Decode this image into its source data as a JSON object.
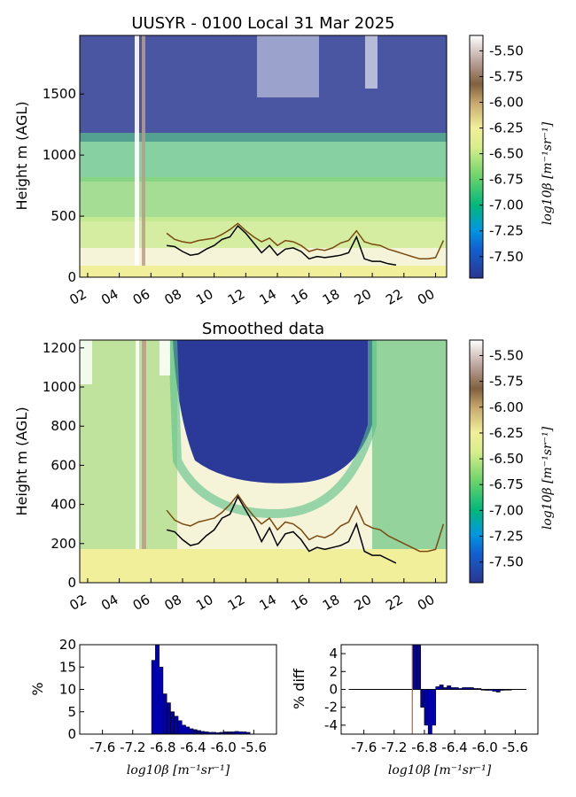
{
  "chart_data": [
    {
      "type": "heatmap",
      "title": "UUSYR - 0100 Local 31 Mar 2025",
      "ylabel": "Height m (AGL)",
      "ylim": [
        0,
        1980
      ],
      "yticks": [
        "0",
        "500",
        "1000",
        "1500"
      ],
      "xticks": [
        "02",
        "04",
        "06",
        "08",
        "10",
        "12",
        "14",
        "16",
        "18",
        "20",
        "22",
        "00"
      ],
      "colorbar": {
        "label": "log10β [m⁻¹sr⁻¹]",
        "range": [
          -7.7,
          -5.35
        ],
        "ticks": [
          "-5.50",
          "-5.75",
          "-6.00",
          "-6.25",
          "-6.50",
          "-6.75",
          "-7.00",
          "-7.25",
          "-7.50"
        ]
      },
      "series": [
        {
          "color": "#000000",
          "x": [
            7.0,
            7.5,
            8.0,
            8.5,
            9.0,
            9.5,
            10.0,
            10.5,
            11.0,
            11.5,
            12.0,
            12.5,
            13.0,
            13.5,
            14.0,
            14.5,
            15.0,
            15.5,
            16.0,
            16.5,
            17.0,
            17.5,
            18.0,
            18.5,
            19.0,
            19.5,
            20.0,
            20.5,
            21.0,
            21.5
          ],
          "y": [
            260,
            250,
            210,
            180,
            190,
            230,
            260,
            310,
            330,
            420,
            360,
            280,
            200,
            260,
            180,
            230,
            240,
            210,
            150,
            170,
            160,
            170,
            180,
            200,
            330,
            150,
            130,
            130,
            110,
            100
          ]
        },
        {
          "color": "#7a4a10",
          "x": [
            7.0,
            7.5,
            8.0,
            8.5,
            9.0,
            9.5,
            10.0,
            10.5,
            11.0,
            11.5,
            12.0,
            12.5,
            13.0,
            13.5,
            14.0,
            14.5,
            15.0,
            15.5,
            16.0,
            16.5,
            17.0,
            17.5,
            18.0,
            18.5,
            19.0,
            19.5,
            20.0,
            20.5,
            21.0,
            21.5,
            22.0,
            22.5,
            23.0,
            23.5,
            24.0,
            24.5
          ],
          "y": [
            360,
            310,
            290,
            280,
            300,
            310,
            320,
            350,
            390,
            440,
            380,
            330,
            290,
            320,
            260,
            300,
            290,
            260,
            210,
            230,
            220,
            240,
            280,
            300,
            380,
            290,
            270,
            260,
            230,
            210,
            190,
            170,
            150,
            150,
            160,
            300
          ]
        }
      ]
    },
    {
      "type": "heatmap",
      "title": "Smoothed data",
      "ylabel": "Height m (AGL)",
      "ylim": [
        0,
        1240
      ],
      "yticks": [
        "0",
        "200",
        "400",
        "600",
        "800",
        "1000",
        "1200"
      ],
      "xticks": [
        "02",
        "04",
        "06",
        "08",
        "10",
        "12",
        "14",
        "16",
        "18",
        "20",
        "22",
        "00"
      ],
      "colorbar": {
        "label": "log10β [m⁻¹sr⁻¹]",
        "range": [
          -7.7,
          -5.35
        ],
        "ticks": [
          "-5.50",
          "-5.75",
          "-6.00",
          "-6.25",
          "-6.50",
          "-6.75",
          "-7.00",
          "-7.25",
          "-7.50"
        ]
      },
      "series": [
        {
          "color": "#000000",
          "x": [
            7.0,
            7.5,
            8.0,
            8.5,
            9.0,
            9.5,
            10.0,
            10.5,
            11.0,
            11.5,
            12.0,
            12.5,
            13.0,
            13.5,
            14.0,
            14.5,
            15.0,
            15.5,
            16.0,
            16.5,
            17.0,
            17.5,
            18.0,
            18.5,
            19.0,
            19.5,
            20.0,
            20.5,
            21.0,
            21.5
          ],
          "y": [
            270,
            260,
            220,
            190,
            200,
            240,
            270,
            330,
            350,
            440,
            370,
            300,
            210,
            280,
            190,
            250,
            260,
            220,
            160,
            180,
            170,
            180,
            190,
            210,
            300,
            160,
            140,
            140,
            120,
            100
          ]
        },
        {
          "color": "#7a4a10",
          "x": [
            7.0,
            7.5,
            8.0,
            8.5,
            9.0,
            9.5,
            10.0,
            10.5,
            11.0,
            11.5,
            12.0,
            12.5,
            13.0,
            13.5,
            14.0,
            14.5,
            15.0,
            15.5,
            16.0,
            16.5,
            17.0,
            17.5,
            18.0,
            18.5,
            19.0,
            19.5,
            20.0,
            20.5,
            21.0,
            21.5,
            22.0,
            22.5,
            23.0,
            23.5,
            24.0,
            24.5
          ],
          "y": [
            370,
            320,
            300,
            290,
            310,
            320,
            330,
            360,
            400,
            450,
            390,
            340,
            300,
            330,
            270,
            310,
            300,
            270,
            220,
            240,
            230,
            250,
            290,
            310,
            390,
            300,
            280,
            270,
            240,
            220,
            200,
            180,
            160,
            160,
            170,
            300
          ]
        }
      ]
    },
    {
      "type": "bar",
      "ylabel": "%",
      "xlabel": "log10β [m⁻¹sr⁻¹]",
      "ylim": [
        0,
        20
      ],
      "yticks": [
        "0",
        "5",
        "10",
        "15",
        "20"
      ],
      "xticks": [
        "-7.6",
        "-7.2",
        "-6.8",
        "-6.4",
        "-6.0",
        "-5.6"
      ],
      "xlim": [
        -7.9,
        -5.3
      ],
      "x": [
        -6.95,
        -6.9,
        -6.85,
        -6.8,
        -6.75,
        -6.7,
        -6.65,
        -6.6,
        -6.55,
        -6.5,
        -6.45,
        -6.4,
        -6.35,
        -6.3,
        -6.25,
        -6.2,
        -6.15,
        -6.1,
        -6.05,
        -6.0,
        -5.95,
        -5.9,
        -5.85,
        -5.8,
        -5.75,
        -5.7
      ],
      "values": [
        16.5,
        20.5,
        15,
        9,
        7,
        5,
        4,
        3,
        2,
        1.6,
        1.2,
        1.0,
        0.8,
        0.6,
        0.5,
        0.4,
        0.4,
        0.3,
        0.4,
        0.5,
        0.5,
        0.5,
        0.6,
        0.5,
        0.5,
        0.4
      ]
    },
    {
      "type": "bar",
      "ylabel": "% diff",
      "xlabel": "log10β [m⁻¹sr⁻¹]",
      "ylim": [
        -5,
        5
      ],
      "yticks": [
        "-4",
        "-2",
        "0",
        "2",
        "4"
      ],
      "xticks": [
        "-7.6",
        "-7.2",
        "-6.8",
        "-6.4",
        "-6.0",
        "-5.6"
      ],
      "xlim": [
        -7.9,
        -5.3
      ],
      "x": [
        -6.95,
        -6.9,
        -6.85,
        -6.8,
        -6.75,
        -6.7,
        -6.65,
        -6.6,
        -6.55,
        -6.5,
        -6.45,
        -6.4,
        -6.35,
        -6.3,
        -6.25,
        -6.2,
        -6.15,
        -6.1,
        -6.05,
        -6.0,
        -5.95,
        -5.9,
        -5.85,
        -5.8,
        -5.75,
        -5.7
      ],
      "values": [
        5,
        5,
        -2,
        -4,
        -5,
        -4,
        0.3,
        0.5,
        0.2,
        0.4,
        0.2,
        0.2,
        0.1,
        0.2,
        0.2,
        0.2,
        0.1,
        0.1,
        0.0,
        -0.1,
        -0.1,
        -0.2,
        -0.3,
        -0.1,
        0,
        0
      ]
    }
  ]
}
